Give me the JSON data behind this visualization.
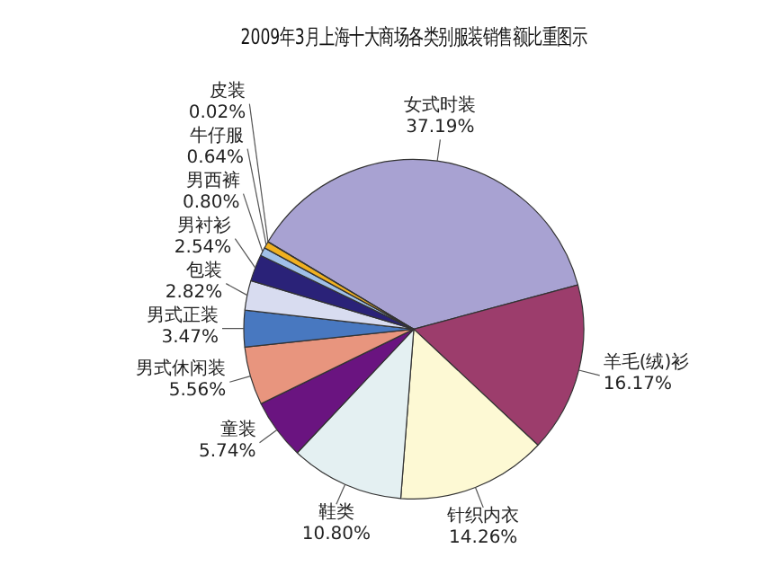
{
  "chart_data": {
    "type": "pie",
    "title": "2009年3月上海十大商场各类别服装销售额比重图示",
    "categories": [
      "女式时装",
      "羊毛(绒)衫",
      "针织内衣",
      "鞋类",
      "童装",
      "男式休闲装",
      "男式正装",
      "包装",
      "男衬衫",
      "男西裤",
      "牛仔服",
      "皮装"
    ],
    "values": [
      37.19,
      16.17,
      14.26,
      10.8,
      5.74,
      5.56,
      3.47,
      2.82,
      2.54,
      0.8,
      0.64,
      0.02
    ],
    "value_labels": [
      "37.19%",
      "16.17%",
      "14.26%",
      "10.80%",
      "5.74%",
      "5.56%",
      "3.47%",
      "2.82%",
      "2.54%",
      "0.80%",
      "0.64%",
      "0.02%"
    ],
    "colors": [
      "#a8a2d2",
      "#9c3d6c",
      "#fdf9d4",
      "#e4f0f2",
      "#6a1480",
      "#e8957e",
      "#4878c0",
      "#d8dcf0",
      "#2a2278",
      "#a0c0e8",
      "#f0b020",
      "#fff0a0"
    ],
    "legend": false
  }
}
